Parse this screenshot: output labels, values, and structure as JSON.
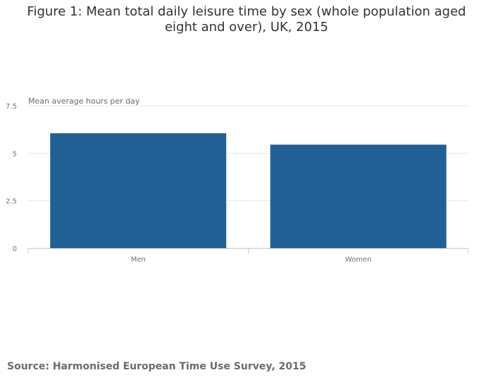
{
  "colors": {
    "bar": "#206095",
    "grid": "#e6e6e6",
    "axis": "#cccccc"
  },
  "chart_data": {
    "type": "bar",
    "title": "Figure 1: Mean total daily leisure time by sex (whole population aged eight and over), UK, 2015",
    "categories": [
      "Men",
      "Women"
    ],
    "values": [
      6.05,
      5.45
    ],
    "xlabel": "",
    "ylabel": "Mean average hours per day",
    "ylim": [
      0,
      7.5
    ],
    "yticks": [
      0,
      2.5,
      5,
      7.5
    ],
    "ytick_labels": [
      "0",
      "2.5",
      "5",
      "7.5"
    ],
    "grid": true,
    "source": "Source: Harmonised European Time Use Survey, 2015"
  }
}
